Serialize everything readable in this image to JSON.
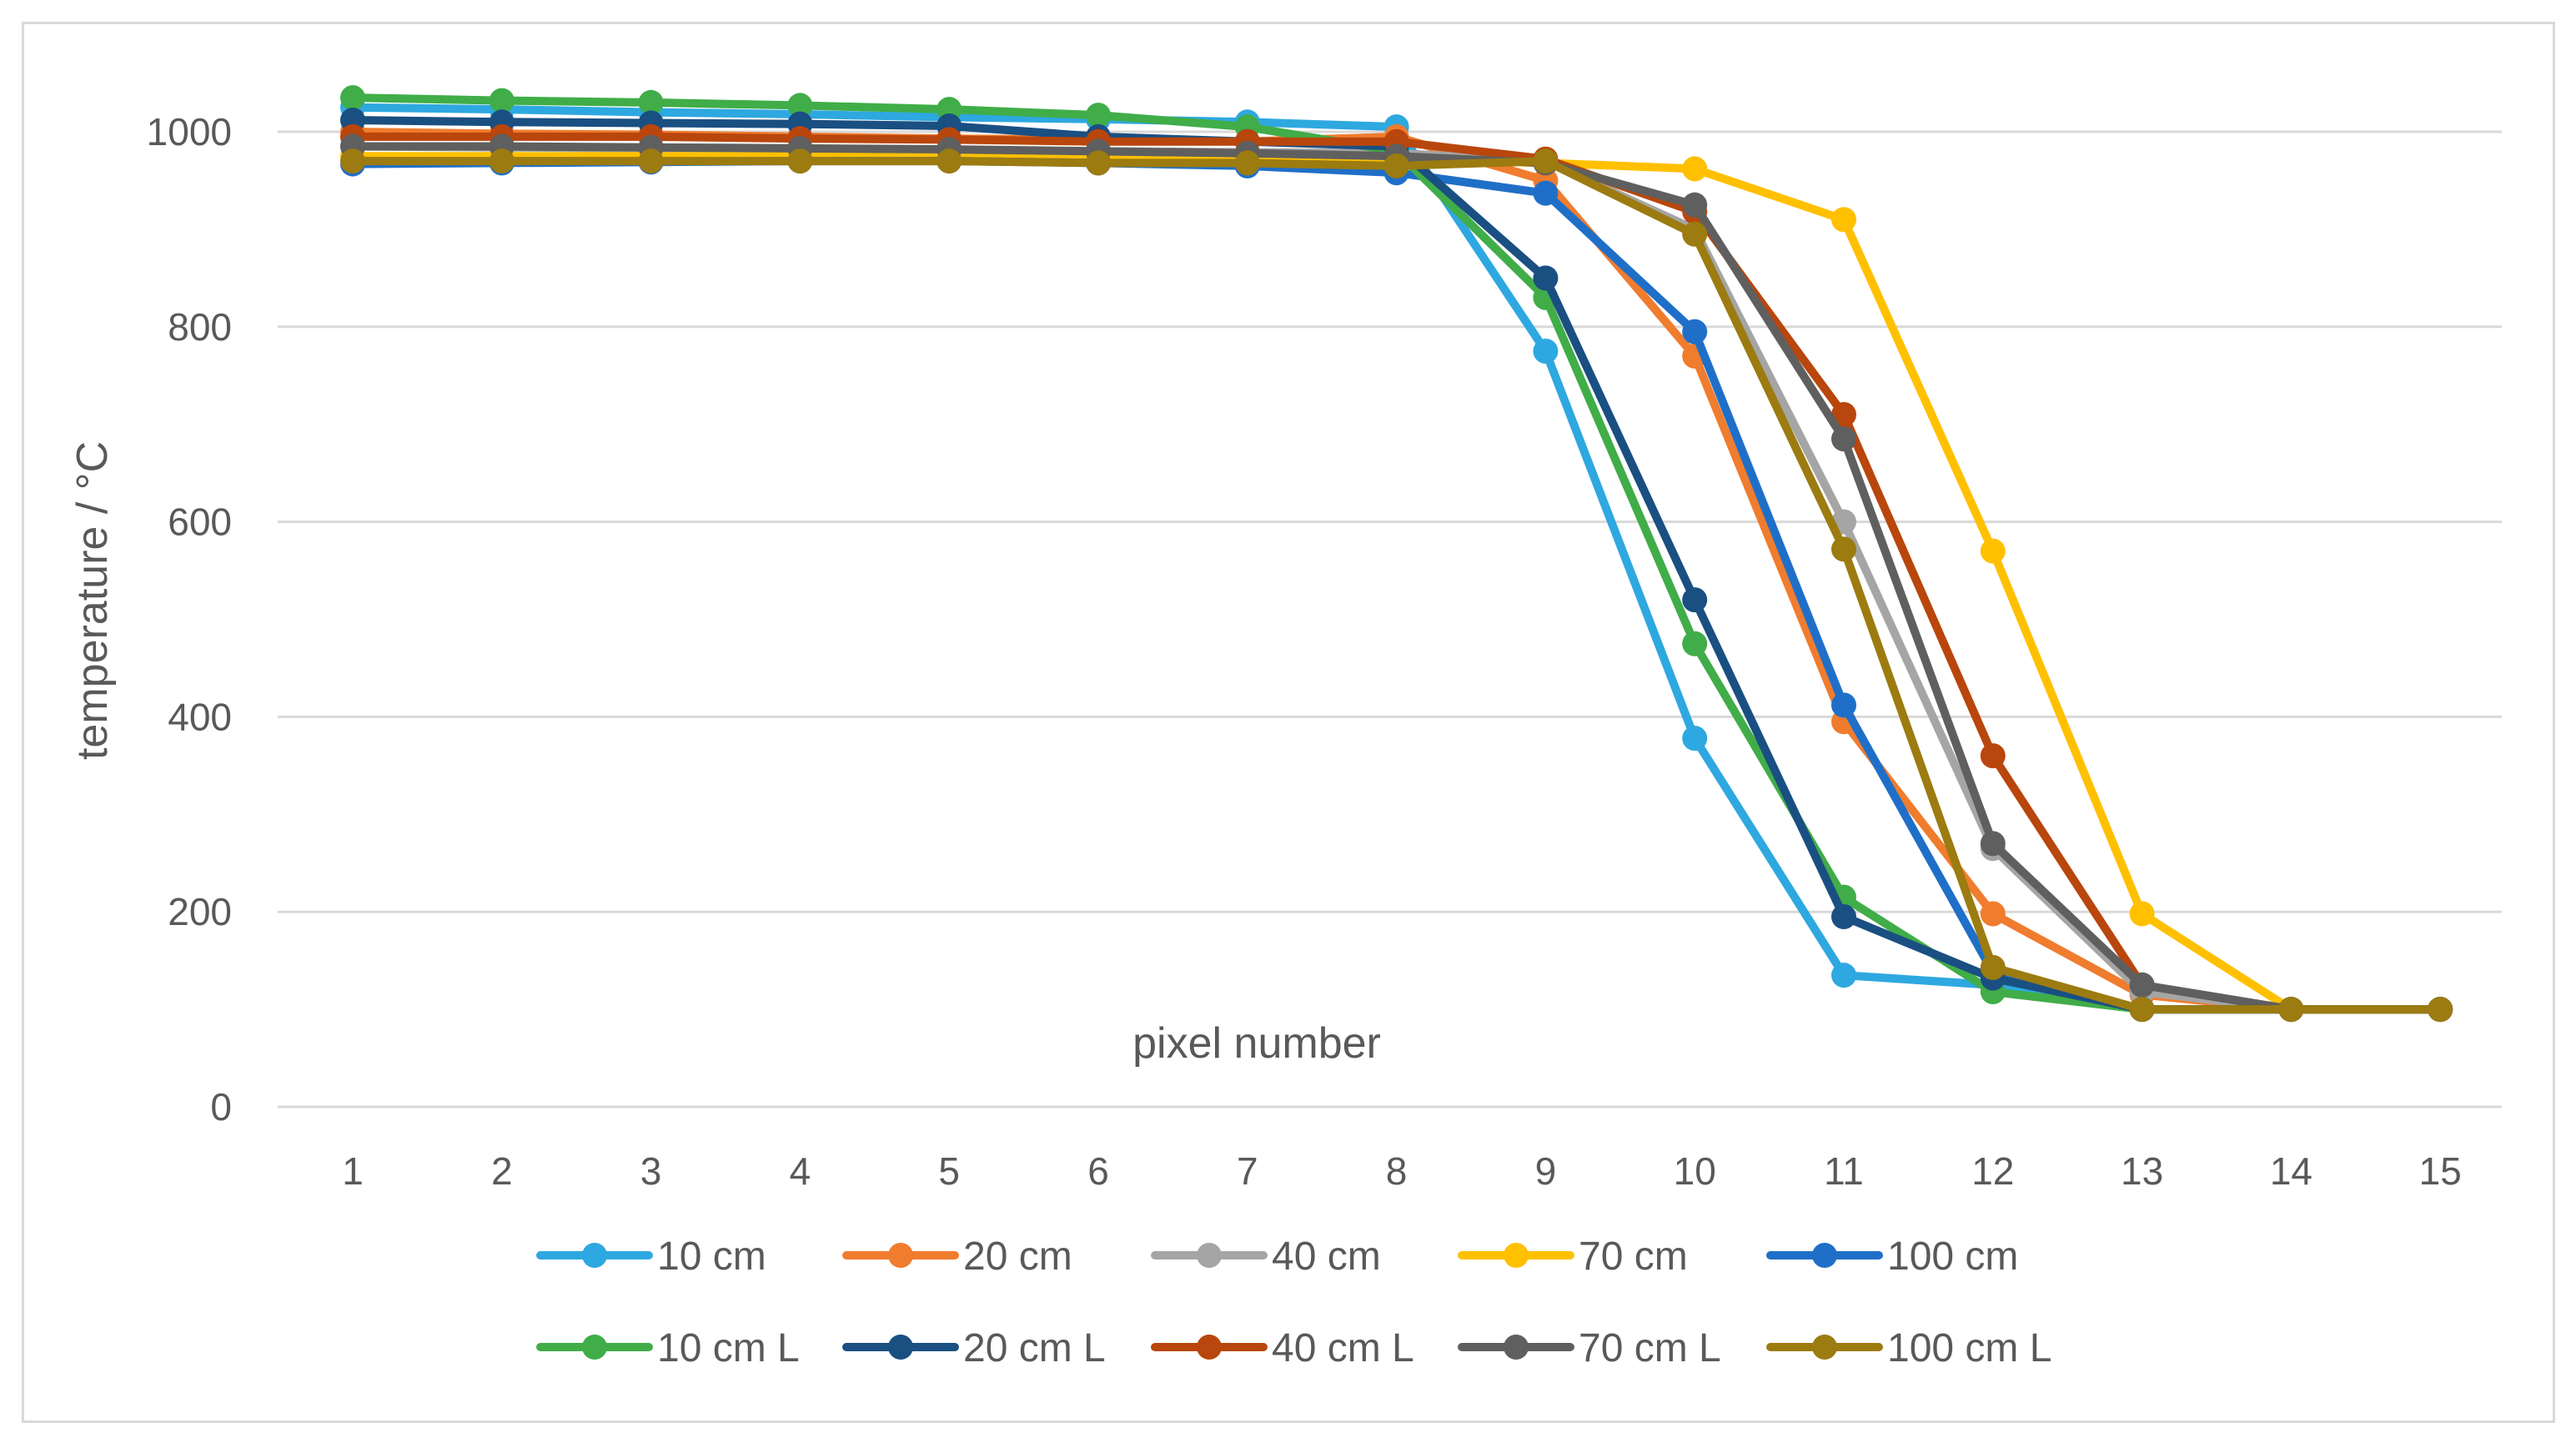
{
  "chart_data": {
    "type": "line",
    "title": "",
    "xlabel": "pixel number",
    "ylabel": "temperature / °C",
    "x": [
      1,
      2,
      3,
      4,
      5,
      6,
      7,
      8,
      9,
      10,
      11,
      12,
      13,
      14,
      15
    ],
    "ylim": [
      0,
      1100
    ],
    "yticks": [
      0,
      200,
      400,
      600,
      800,
      1000
    ],
    "grid": true,
    "legend_position": "bottom",
    "series": [
      {
        "name": "10 cm",
        "color": "#2ea8e0",
        "values": [
          1025,
          1023,
          1020,
          1018,
          1015,
          1013,
          1010,
          1005,
          775,
          378,
          135,
          125,
          100,
          100,
          100
        ]
      },
      {
        "name": "20 cm",
        "color": "#f07c2e",
        "values": [
          1000,
          998,
          997,
          995,
          993,
          992,
          990,
          995,
          950,
          770,
          395,
          198,
          115,
          100,
          100
        ]
      },
      {
        "name": "40 cm",
        "color": "#a5a5a5",
        "values": [
          985,
          984,
          983,
          982,
          981,
          980,
          979,
          978,
          970,
          900,
          600,
          265,
          118,
          100,
          100
        ]
      },
      {
        "name": "70 cm",
        "color": "#ffc000",
        "values": [
          975,
          975,
          975,
          975,
          975,
          975,
          975,
          972,
          968,
          962,
          910,
          570,
          198,
          100,
          100
        ]
      },
      {
        "name": "100 cm",
        "color": "#1f6fc8",
        "values": [
          967,
          968,
          969,
          970,
          970,
          968,
          965,
          958,
          937,
          795,
          412,
          138,
          100,
          100,
          100
        ]
      },
      {
        "name": "10 cm L",
        "color": "#40ad48",
        "values": [
          1035,
          1032,
          1030,
          1027,
          1023,
          1017,
          1005,
          980,
          830,
          475,
          215,
          118,
          100,
          100,
          100
        ]
      },
      {
        "name": "20 cm L",
        "color": "#1a4f82",
        "values": [
          1012,
          1010,
          1009,
          1008,
          1006,
          995,
          990,
          985,
          850,
          520,
          195,
          132,
          100,
          100,
          100
        ]
      },
      {
        "name": "40 cm L",
        "color": "#b9460c",
        "values": [
          995,
          995,
          995,
          993,
          992,
          990,
          990,
          990,
          972,
          918,
          710,
          360,
          125,
          100,
          100
        ]
      },
      {
        "name": "70 cm L",
        "color": "#5f5f5f",
        "values": [
          985,
          985,
          984,
          983,
          982,
          980,
          978,
          975,
          968,
          925,
          685,
          270,
          125,
          100,
          100
        ]
      },
      {
        "name": "100 cm L",
        "color": "#9c7b10",
        "values": [
          970,
          970,
          970,
          970,
          970,
          968,
          968,
          965,
          970,
          895,
          572,
          143,
          100,
          100,
          100
        ]
      }
    ]
  }
}
